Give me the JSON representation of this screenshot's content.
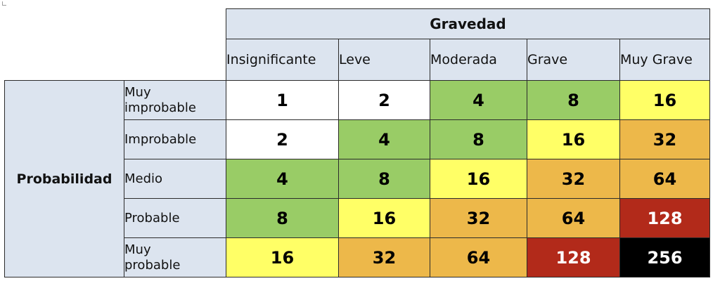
{
  "severity_header": "Gravedad",
  "probability_header": "Probabilidad",
  "columns": [
    "Insignificante",
    "Leve",
    "Moderada",
    "Grave",
    "Muy Grave"
  ],
  "rows": [
    {
      "label": "Muy\nimprobable",
      "values": [
        "1",
        "2",
        "4",
        "8",
        "16"
      ]
    },
    {
      "label": "Improbable",
      "values": [
        "2",
        "4",
        "8",
        "16",
        "32"
      ]
    },
    {
      "label": "Medio",
      "values": [
        "4",
        "8",
        "16",
        "32",
        "64"
      ]
    },
    {
      "label": "Probable",
      "values": [
        "8",
        "16",
        "32",
        "64",
        "128"
      ]
    },
    {
      "label": "Muy\nprobable",
      "values": [
        "16",
        "32",
        "64",
        "128",
        "256"
      ]
    }
  ],
  "colors": {
    "header_bg": "#dce4ef",
    "white": "#ffffff",
    "green": "#99cc66",
    "yellow": "#ffff66",
    "orange": "#edb84a",
    "red": "#b22a1a",
    "black": "#000000"
  }
}
